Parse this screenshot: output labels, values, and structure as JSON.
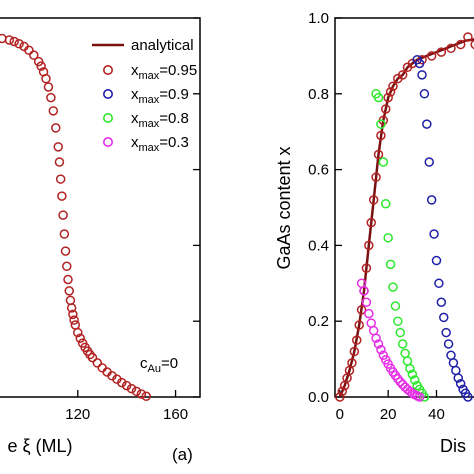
{
  "chart_data": [
    {
      "type": "scatter",
      "panel_label": "(a)",
      "xlabel": "e ξ (ML)",
      "ylabel": "",
      "xlim": [
        80,
        170
      ],
      "ylim": [
        0,
        1.0
      ],
      "xticks": [
        "120",
        "160"
      ],
      "xtick_values": [
        120,
        160
      ],
      "annotation": "c",
      "annotation_sub": "Au",
      "annotation_tail": "=0",
      "legend": {
        "placement": "top-right",
        "line_entry": "analytical",
        "marker_entries": [
          {
            "base": "x",
            "sub": "max",
            "tail": "=0.95",
            "color": "#b22222"
          },
          {
            "base": "x",
            "sub": "max",
            "tail": "=0.9",
            "color": "#1f1fa8"
          },
          {
            "base": "x",
            "sub": "max",
            "tail": "=0.8",
            "color": "#2ee82e"
          },
          {
            "base": "x",
            "sub": "max",
            "tail": "=0.3",
            "color": "#e62ee6"
          }
        ]
      },
      "series": [
        {
          "name": "x=0.95",
          "color": "#b22222",
          "x": [
            82,
            86,
            89,
            92,
            94,
            96,
            98,
            100,
            102,
            104,
            105,
            106,
            107,
            108,
            109,
            110,
            111,
            112,
            112.5,
            113,
            113.5,
            114,
            114.5,
            115,
            115.5,
            116,
            116.5,
            117,
            117.5,
            118,
            118.5,
            119,
            120,
            121,
            122,
            123,
            124,
            125,
            126,
            128,
            130,
            132,
            134,
            136,
            138,
            140,
            142,
            144,
            146,
            148
          ],
          "y": [
            0.95,
            0.948,
            0.946,
            0.942,
            0.938,
            0.932,
            0.925,
            0.915,
            0.902,
            0.885,
            0.873,
            0.858,
            0.84,
            0.818,
            0.79,
            0.755,
            0.71,
            0.66,
            0.62,
            0.575,
            0.53,
            0.48,
            0.43,
            0.385,
            0.345,
            0.31,
            0.28,
            0.255,
            0.235,
            0.218,
            0.203,
            0.19,
            0.17,
            0.155,
            0.142,
            0.131,
            0.121,
            0.112,
            0.104,
            0.09,
            0.077,
            0.066,
            0.056,
            0.047,
            0.038,
            0.03,
            0.022,
            0.015,
            0.008,
            0.002
          ]
        }
      ]
    },
    {
      "type": "scatter",
      "panel_label": "",
      "xlabel": "Dis",
      "ylabel": "GaAs content x",
      "xlim": [
        -2,
        58
      ],
      "ylim": [
        0,
        1.0
      ],
      "xticks": [
        "0",
        "20",
        "40"
      ],
      "xtick_values": [
        0,
        20,
        40
      ],
      "yticks": [
        "0.0",
        "0.2",
        "0.4",
        "0.6",
        "0.8",
        "1.0"
      ],
      "ytick_values": [
        0,
        0.2,
        0.4,
        0.6,
        0.8,
        1.0
      ],
      "analytical": {
        "x": [
          0,
          2,
          4,
          6,
          8,
          10,
          12,
          14,
          16,
          18,
          20,
          22,
          24,
          26,
          28,
          30,
          32,
          34,
          36,
          38,
          40,
          42,
          44,
          46,
          48,
          50,
          52,
          54,
          56,
          58
        ],
        "y": [
          0.0,
          0.03,
          0.07,
          0.12,
          0.19,
          0.28,
          0.4,
          0.52,
          0.64,
          0.73,
          0.79,
          0.82,
          0.84,
          0.85,
          0.87,
          0.88,
          0.89,
          0.895,
          0.9,
          0.905,
          0.91,
          0.915,
          0.92,
          0.925,
          0.93,
          0.935,
          0.94,
          0.942,
          0.944,
          0.945
        ]
      },
      "series": [
        {
          "name": "x=0.95",
          "color": "#b22222",
          "x": [
            0,
            1,
            2,
            3,
            4,
            5,
            6,
            7,
            8,
            9,
            10,
            11,
            12,
            13,
            14,
            15,
            16,
            17,
            18,
            19,
            20,
            21,
            22,
            24,
            26,
            28,
            30,
            34,
            38,
            42,
            46,
            50,
            53,
            56
          ],
          "y": [
            0.0,
            0.015,
            0.03,
            0.05,
            0.07,
            0.09,
            0.12,
            0.15,
            0.19,
            0.23,
            0.28,
            0.34,
            0.4,
            0.46,
            0.52,
            0.58,
            0.64,
            0.69,
            0.73,
            0.76,
            0.79,
            0.805,
            0.82,
            0.84,
            0.85,
            0.87,
            0.88,
            0.89,
            0.9,
            0.91,
            0.92,
            0.93,
            0.95,
            0.93
          ]
        },
        {
          "name": "x=0.9",
          "color": "#1f1fa8",
          "x": [
            32,
            33,
            34,
            35,
            36,
            37,
            38,
            39,
            40,
            41,
            42,
            43,
            44,
            45,
            46,
            47,
            48,
            49,
            50,
            51,
            52,
            53
          ],
          "y": [
            0.89,
            0.88,
            0.85,
            0.8,
            0.72,
            0.62,
            0.52,
            0.43,
            0.36,
            0.3,
            0.25,
            0.21,
            0.17,
            0.14,
            0.11,
            0.09,
            0.07,
            0.05,
            0.035,
            0.02,
            0.01,
            0.0
          ]
        },
        {
          "name": "x=0.8",
          "color": "#2ee82e",
          "x": [
            15,
            16,
            17,
            18,
            19,
            20,
            21,
            22,
            23,
            24,
            25,
            26,
            27,
            28,
            29,
            30,
            31,
            32,
            33,
            34,
            35
          ],
          "y": [
            0.8,
            0.79,
            0.72,
            0.62,
            0.51,
            0.42,
            0.35,
            0.29,
            0.24,
            0.2,
            0.17,
            0.14,
            0.115,
            0.095,
            0.075,
            0.06,
            0.045,
            0.03,
            0.02,
            0.01,
            0.0
          ]
        },
        {
          "name": "x=0.3",
          "color": "#e62ee6",
          "x": [
            9,
            10,
            11,
            12,
            13,
            14,
            15,
            16,
            17,
            18,
            19,
            20,
            21,
            22,
            23,
            24,
            25,
            26,
            27,
            28,
            29,
            30,
            31,
            32,
            33
          ],
          "y": [
            0.3,
            0.28,
            0.25,
            0.22,
            0.195,
            0.175,
            0.155,
            0.14,
            0.125,
            0.11,
            0.098,
            0.087,
            0.076,
            0.066,
            0.057,
            0.048,
            0.04,
            0.033,
            0.026,
            0.02,
            0.015,
            0.01,
            0.006,
            0.003,
            0.0
          ]
        }
      ]
    }
  ]
}
